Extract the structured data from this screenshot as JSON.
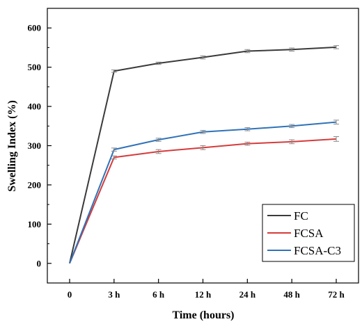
{
  "chart_data": {
    "type": "line",
    "categories": [
      "0",
      "3 h",
      "6 h",
      "12 h",
      "24 h",
      "48 h",
      "72 h"
    ],
    "xlabel": "Time (hours)",
    "ylabel": "Swelling Index (%)",
    "ylim": [
      -50,
      650
    ],
    "yticks": [
      0,
      100,
      200,
      300,
      400,
      500,
      600
    ],
    "grid": false,
    "legend_position": "bottom-right",
    "series": [
      {
        "name": "FC",
        "color": "#3a3a3a",
        "values": [
          0,
          490,
          510,
          525,
          541,
          545,
          551
        ],
        "errors": [
          0,
          3,
          3,
          4,
          4,
          4,
          4
        ]
      },
      {
        "name": "FCSA",
        "color": "#d63b3b",
        "values": [
          0,
          270,
          285,
          295,
          305,
          310,
          317
        ],
        "errors": [
          0,
          4,
          5,
          5,
          4,
          5,
          6
        ]
      },
      {
        "name": "FCSA-C3",
        "color": "#2f72b8",
        "values": [
          0,
          290,
          315,
          335,
          342,
          350,
          360
        ],
        "errors": [
          0,
          4,
          4,
          4,
          4,
          4,
          5
        ]
      }
    ]
  }
}
